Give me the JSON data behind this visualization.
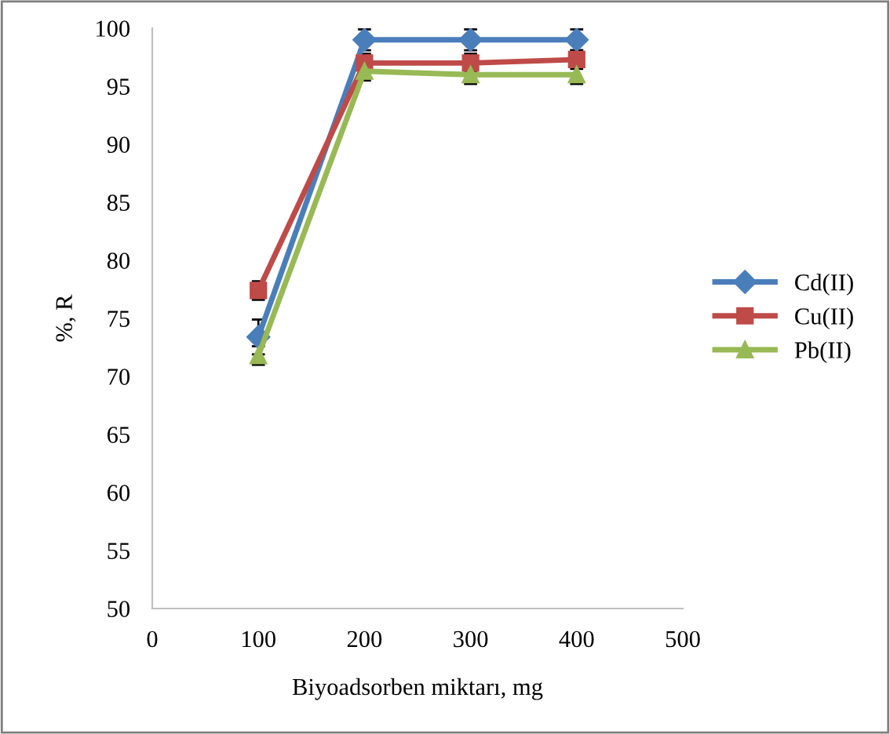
{
  "chart_data": {
    "type": "line",
    "xlabel": "Biyoadsorben miktarı, mg",
    "ylabel": "%, R",
    "x": [
      100,
      200,
      300,
      400
    ],
    "series": [
      {
        "name": "Cd(II)",
        "color": "#4a7ebb",
        "values": [
          73.4,
          99.0,
          99.0,
          99.0
        ],
        "errors": [
          1.5,
          0.9,
          0.9,
          0.9
        ],
        "marker": "diamond"
      },
      {
        "name": "Cu(II)",
        "color": "#be4b48",
        "values": [
          77.4,
          97.0,
          97.0,
          97.3
        ],
        "errors": [
          0.8,
          0.8,
          0.8,
          0.8
        ],
        "marker": "square"
      },
      {
        "name": "Pb(II)",
        "color": "#98b954",
        "values": [
          71.8,
          96.3,
          96.0,
          96.0
        ],
        "errors": [
          0.8,
          0.8,
          0.8,
          0.8
        ],
        "marker": "triangle"
      }
    ],
    "xlim": [
      0,
      500
    ],
    "xticks": [
      0,
      100,
      200,
      300,
      400,
      500
    ],
    "ylim": [
      50,
      100
    ],
    "yticks": [
      50,
      55,
      60,
      65,
      70,
      75,
      80,
      85,
      90,
      95,
      100
    ],
    "legend": "right",
    "grid": false
  }
}
